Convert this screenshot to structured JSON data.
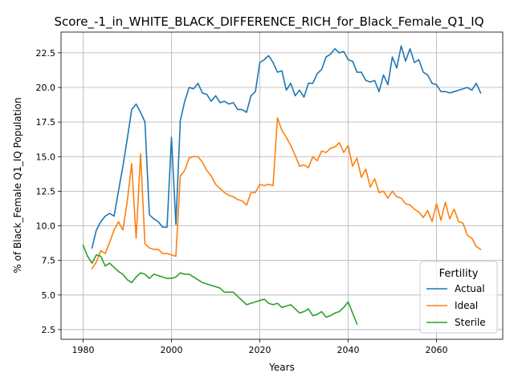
{
  "chart_data": {
    "type": "line",
    "title": "Score_-1_in_WHITE_BLACK_DIFFERENCE_RICH_for_Black_Female_Q1_IQ",
    "xlabel": "Years",
    "ylabel": "% of Black_Female Q1_IQ Population",
    "xlim": [
      1975,
      2075
    ],
    "ylim": [
      1.8,
      24.0
    ],
    "grid": true,
    "xticks": [
      1980,
      2000,
      2020,
      2040,
      2060
    ],
    "yticks": [
      2.5,
      5.0,
      7.5,
      10.0,
      12.5,
      15.0,
      17.5,
      20.0,
      22.5
    ],
    "legend": {
      "title": "Fertility",
      "placement": "lower-right"
    },
    "series": [
      {
        "name": "Actual",
        "color": "#1f77b4",
        "x": [
          1982,
          1983,
          1984,
          1985,
          1986,
          1987,
          1988,
          1989,
          1990,
          1991,
          1992,
          1993,
          1994,
          1995,
          1996,
          1997,
          1998,
          1999,
          2000,
          2001,
          2002,
          2003,
          2004,
          2005,
          2006,
          2007,
          2008,
          2009,
          2010,
          2011,
          2012,
          2013,
          2014,
          2015,
          2016,
          2017,
          2018,
          2019,
          2020,
          2021,
          2022,
          2023,
          2024,
          2025,
          2026,
          2027,
          2028,
          2029,
          2030,
          2031,
          2032,
          2033,
          2034,
          2035,
          2036,
          2037,
          2038,
          2039,
          2040,
          2041,
          2042,
          2043,
          2044,
          2045,
          2046,
          2047,
          2048,
          2049,
          2050,
          2051,
          2052,
          2053,
          2054,
          2055,
          2056,
          2057,
          2058,
          2059,
          2060,
          2061,
          2062,
          2063,
          2064,
          2065,
          2066,
          2067,
          2068,
          2069,
          2070
        ],
        "values": [
          8.4,
          9.7,
          10.3,
          10.7,
          10.9,
          10.7,
          12.5,
          14.3,
          16.3,
          18.4,
          18.8,
          18.2,
          17.5,
          10.8,
          10.5,
          10.3,
          9.9,
          9.9,
          16.4,
          10.1,
          17.6,
          19.0,
          20.0,
          19.9,
          20.3,
          19.6,
          19.5,
          19.0,
          19.4,
          18.9,
          19.0,
          18.8,
          18.9,
          18.4,
          18.4,
          18.2,
          19.4,
          19.7,
          21.8,
          22.0,
          22.3,
          21.8,
          21.1,
          21.2,
          19.8,
          20.3,
          19.4,
          19.8,
          19.3,
          20.3,
          20.3,
          21.0,
          21.3,
          22.2,
          22.4,
          22.8,
          22.5,
          22.6,
          22.0,
          21.9,
          21.1,
          21.1,
          20.5,
          20.4,
          20.5,
          19.7,
          20.9,
          20.2,
          22.2,
          21.4,
          23.0,
          21.9,
          22.8,
          21.8,
          22.0,
          21.1,
          20.9,
          20.3,
          20.2,
          19.7,
          19.7,
          19.6,
          19.7,
          19.8,
          19.9,
          20.0,
          19.8,
          20.3,
          19.6
        ]
      },
      {
        "name": "Ideal",
        "color": "#ff7f0e",
        "x": [
          1982,
          1983,
          1984,
          1985,
          1986,
          1987,
          1988,
          1989,
          1990,
          1991,
          1992,
          1993,
          1994,
          1995,
          1996,
          1997,
          1998,
          1999,
          2000,
          2001,
          2002,
          2003,
          2004,
          2005,
          2006,
          2007,
          2008,
          2009,
          2010,
          2011,
          2012,
          2013,
          2014,
          2015,
          2016,
          2017,
          2018,
          2019,
          2020,
          2021,
          2022,
          2023,
          2024,
          2025,
          2026,
          2027,
          2028,
          2029,
          2030,
          2031,
          2032,
          2033,
          2034,
          2035,
          2036,
          2037,
          2038,
          2039,
          2040,
          2041,
          2042,
          2043,
          2044,
          2045,
          2046,
          2047,
          2048,
          2049,
          2050,
          2051,
          2052,
          2053,
          2054,
          2055,
          2056,
          2057,
          2058,
          2059,
          2060,
          2061,
          2062,
          2063,
          2064,
          2065,
          2066,
          2067,
          2068,
          2069,
          2070
        ],
        "values": [
          6.9,
          7.4,
          8.2,
          8.0,
          8.8,
          9.7,
          10.3,
          9.7,
          11.8,
          14.5,
          9.1,
          15.2,
          8.7,
          8.4,
          8.3,
          8.3,
          8.0,
          8.0,
          7.9,
          7.8,
          13.6,
          14.0,
          14.9,
          15.0,
          15.0,
          14.6,
          14.0,
          13.6,
          13.0,
          12.7,
          12.4,
          12.2,
          12.1,
          11.9,
          11.8,
          11.5,
          12.4,
          12.4,
          13.0,
          12.9,
          13.0,
          12.9,
          17.8,
          16.9,
          16.4,
          15.8,
          15.1,
          14.3,
          14.4,
          14.2,
          15.0,
          14.7,
          15.4,
          15.3,
          15.6,
          15.7,
          16.0,
          15.3,
          15.8,
          14.3,
          14.9,
          13.5,
          14.1,
          12.8,
          13.4,
          12.4,
          12.5,
          12.0,
          12.5,
          12.1,
          12.0,
          11.6,
          11.5,
          11.2,
          11.0,
          10.6,
          11.1,
          10.3,
          11.6,
          10.4,
          11.7,
          10.5,
          11.2,
          10.3,
          10.2,
          9.3,
          9.1,
          8.5,
          8.3
        ]
      },
      {
        "name": "Sterile",
        "color": "#2ca02c",
        "x": [
          1980,
          1981,
          1982,
          1983,
          1984,
          1985,
          1986,
          1987,
          1988,
          1989,
          1990,
          1991,
          1992,
          1993,
          1994,
          1995,
          1996,
          1997,
          1998,
          1999,
          2000,
          2001,
          2002,
          2003,
          2004,
          2005,
          2006,
          2007,
          2008,
          2009,
          2010,
          2011,
          2012,
          2013,
          2014,
          2015,
          2016,
          2017,
          2018,
          2019,
          2020,
          2021,
          2022,
          2023,
          2024,
          2025,
          2026,
          2027,
          2028,
          2029,
          2030,
          2031,
          2032,
          2033,
          2034,
          2035,
          2036,
          2037,
          2038,
          2039,
          2040,
          2041,
          2042
        ],
        "values": [
          8.6,
          7.8,
          7.3,
          7.9,
          7.8,
          7.1,
          7.3,
          7.0,
          6.7,
          6.5,
          6.1,
          5.9,
          6.3,
          6.6,
          6.5,
          6.2,
          6.5,
          6.4,
          6.3,
          6.2,
          6.2,
          6.3,
          6.6,
          6.5,
          6.5,
          6.3,
          6.1,
          5.9,
          5.8,
          5.7,
          5.6,
          5.5,
          5.2,
          5.2,
          5.2,
          4.9,
          4.6,
          4.3,
          4.4,
          4.5,
          4.6,
          4.7,
          4.4,
          4.3,
          4.4,
          4.1,
          4.2,
          4.3,
          4.0,
          3.7,
          3.8,
          4.0,
          3.5,
          3.6,
          3.8,
          3.4,
          3.5,
          3.7,
          3.8,
          4.1,
          4.5,
          3.7,
          2.9
        ]
      }
    ]
  }
}
